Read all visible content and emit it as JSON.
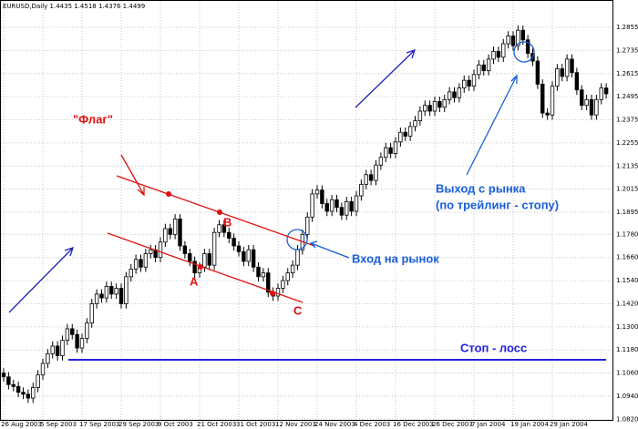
{
  "chart_data": {
    "type": "candlestick",
    "header": "EURUSD,Daily  1.4435 1.4518 1.4376 1.4499",
    "annotations": {
      "flag": "\"Флаг\"",
      "point_a": "A",
      "point_b": "B",
      "point_c": "C",
      "entry": "Вход на рынок",
      "exit_line1": "Выход с рынка",
      "exit_line2": "(по трейлинг - стопу)",
      "stop": "Стоп - лосс"
    },
    "categories": [
      "26 Aug 2003",
      null,
      null,
      null,
      null,
      null,
      null,
      null,
      "5 Sep 2003",
      null,
      null,
      null,
      null,
      null,
      null,
      null,
      "17 Sep 2003",
      null,
      null,
      null,
      null,
      null,
      null,
      null,
      "29 Sep 2003",
      null,
      null,
      null,
      null,
      null,
      null,
      null,
      "9 Oct 2003",
      null,
      null,
      null,
      null,
      null,
      null,
      null,
      "21 Oct 2003",
      null,
      null,
      null,
      null,
      null,
      null,
      null,
      "31 Oct 2003",
      null,
      null,
      null,
      null,
      null,
      null,
      null,
      "12 Nov 2003",
      null,
      null,
      null,
      null,
      null,
      null,
      null,
      "24 Nov 2003",
      null,
      null,
      null,
      null,
      null,
      null,
      null,
      "4 Dec 2003",
      null,
      null,
      null,
      null,
      null,
      null,
      null,
      "16 Dec 2003",
      null,
      null,
      null,
      null,
      null,
      null,
      null,
      "26 Dec 2003",
      null,
      null,
      null,
      null,
      null,
      null,
      null,
      "7 Jan 2004",
      null,
      null,
      null,
      null,
      null,
      null,
      null,
      "19 Jan 2004",
      null,
      null,
      null,
      null,
      null,
      null,
      null,
      "29 Jan 2004",
      null,
      null,
      null,
      null,
      null,
      null,
      null,
      null,
      null,
      null,
      null
    ],
    "open": [
      1.106,
      1.104,
      1.1,
      1.099,
      1.096,
      1.095,
      1.093,
      1.0985,
      1.105,
      1.111,
      1.116,
      1.12,
      1.115,
      1.123,
      1.129,
      1.126,
      1.119,
      1.124,
      1.132,
      1.142,
      1.147,
      1.145,
      1.151,
      1.147,
      1.15,
      1.142,
      1.156,
      1.16,
      1.165,
      1.161,
      1.168,
      1.17,
      1.166,
      1.174,
      1.181,
      1.178,
      1.186,
      1.172,
      1.168,
      1.164,
      1.158,
      1.161,
      1.168,
      1.162,
      1.179,
      1.183,
      1.179,
      1.176,
      1.172,
      1.169,
      1.164,
      1.17,
      1.161,
      1.156,
      1.158,
      1.148,
      1.146,
      1.15,
      1.154,
      1.158,
      1.162,
      1.17,
      1.178,
      1.187,
      1.199,
      1.201,
      1.194,
      1.19,
      1.196,
      1.192,
      1.188,
      1.195,
      1.19,
      1.198,
      1.204,
      1.209,
      1.206,
      1.214,
      1.218,
      1.223,
      1.22,
      1.226,
      1.231,
      1.229,
      1.234,
      1.237,
      1.242,
      1.245,
      1.242,
      1.247,
      1.244,
      1.248,
      1.252,
      1.249,
      1.254,
      1.258,
      1.255,
      1.261,
      1.266,
      1.263,
      1.269,
      1.273,
      1.27,
      1.277,
      1.281,
      1.276,
      1.284,
      1.279,
      1.272,
      1.268,
      1.256,
      1.241,
      1.24,
      1.255,
      1.264,
      1.26,
      1.269,
      1.262,
      1.253,
      1.245,
      1.248,
      1.24,
      1.248,
      1.254
    ],
    "high": [
      1.1085,
      1.1065,
      1.1025,
      1.1015,
      1.0985,
      1.0975,
      1.101,
      1.1075,
      1.1135,
      1.1185,
      1.1225,
      1.1225,
      1.1255,
      1.1315,
      1.1315,
      1.1285,
      1.1265,
      1.1345,
      1.1445,
      1.1495,
      1.1495,
      1.1535,
      1.1535,
      1.1525,
      1.1525,
      1.1585,
      1.1625,
      1.1675,
      1.1675,
      1.1705,
      1.1725,
      1.1725,
      1.1765,
      1.1835,
      1.1835,
      1.1885,
      1.1885,
      1.1745,
      1.1705,
      1.1665,
      1.1635,
      1.1705,
      1.1705,
      1.1815,
      1.1855,
      1.1855,
      1.1815,
      1.1785,
      1.1745,
      1.1715,
      1.1725,
      1.1725,
      1.1635,
      1.1605,
      1.1605,
      1.1505,
      1.1525,
      1.1565,
      1.1605,
      1.1645,
      1.1725,
      1.1805,
      1.1895,
      1.2015,
      1.2035,
      1.2035,
      1.1965,
      1.1985,
      1.1985,
      1.1945,
      1.1975,
      1.1975,
      1.2005,
      1.2065,
      1.2115,
      1.2115,
      1.2165,
      1.2205,
      1.2255,
      1.2255,
      1.2285,
      1.2335,
      1.2335,
      1.2365,
      1.2395,
      1.2445,
      1.2475,
      1.2475,
      1.2495,
      1.2495,
      1.2505,
      1.2545,
      1.2545,
      1.2565,
      1.2605,
      1.2605,
      1.2635,
      1.2685,
      1.2685,
      1.2715,
      1.2755,
      1.2755,
      1.2795,
      1.2835,
      1.2835,
      1.2865,
      1.2865,
      1.2815,
      1.2745,
      1.2705,
      1.2585,
      1.2435,
      1.2575,
      1.2665,
      1.2665,
      1.2715,
      1.2715,
      1.2645,
      1.2555,
      1.2505,
      1.2505,
      1.2505,
      1.2565,
      1.2565
    ],
    "low": [
      1.1015,
      1.0975,
      1.0965,
      1.0935,
      1.0925,
      1.0905,
      1.0905,
      1.096,
      1.1025,
      1.1085,
      1.1135,
      1.1125,
      1.1125,
      1.1205,
      1.1235,
      1.1165,
      1.1165,
      1.1215,
      1.1295,
      1.1395,
      1.1425,
      1.1425,
      1.1445,
      1.1445,
      1.1395,
      1.1395,
      1.1535,
      1.1575,
      1.1585,
      1.1585,
      1.1655,
      1.1635,
      1.1635,
      1.1715,
      1.1755,
      1.1755,
      1.1695,
      1.1655,
      1.1615,
      1.1555,
      1.1555,
      1.1585,
      1.1595,
      1.1595,
      1.1765,
      1.1765,
      1.1735,
      1.1695,
      1.1665,
      1.1615,
      1.1615,
      1.1585,
      1.1535,
      1.1535,
      1.1455,
      1.1435,
      1.1435,
      1.1475,
      1.1515,
      1.1555,
      1.1595,
      1.1675,
      1.1755,
      1.1845,
      1.1965,
      1.1915,
      1.1875,
      1.1875,
      1.1895,
      1.1855,
      1.1855,
      1.1875,
      1.1875,
      1.1955,
      1.2015,
      1.2035,
      1.2035,
      1.2115,
      1.2155,
      1.2175,
      1.2175,
      1.2235,
      1.2265,
      1.2265,
      1.2315,
      1.2345,
      1.2395,
      1.2395,
      1.2395,
      1.2415,
      1.2415,
      1.2455,
      1.2465,
      1.2465,
      1.2515,
      1.2525,
      1.2525,
      1.2585,
      1.2605,
      1.2605,
      1.2665,
      1.2675,
      1.2675,
      1.2745,
      1.2735,
      1.2735,
      1.2765,
      1.2695,
      1.2655,
      1.2535,
      1.2385,
      1.2375,
      1.2375,
      1.2525,
      1.2575,
      1.2575,
      1.2595,
      1.2505,
      1.2425,
      1.2425,
      1.2375,
      1.2375,
      1.2455,
      1.2485
    ],
    "close": [
      1.104,
      1.1,
      1.099,
      1.096,
      1.095,
      1.093,
      1.0985,
      1.105,
      1.111,
      1.116,
      1.12,
      1.115,
      1.123,
      1.129,
      1.126,
      1.119,
      1.124,
      1.132,
      1.142,
      1.147,
      1.145,
      1.151,
      1.147,
      1.15,
      1.142,
      1.156,
      1.16,
      1.165,
      1.161,
      1.168,
      1.17,
      1.166,
      1.174,
      1.181,
      1.178,
      1.186,
      1.172,
      1.168,
      1.164,
      1.158,
      1.161,
      1.168,
      1.162,
      1.179,
      1.183,
      1.179,
      1.176,
      1.172,
      1.169,
      1.164,
      1.17,
      1.161,
      1.156,
      1.158,
      1.148,
      1.146,
      1.15,
      1.154,
      1.158,
      1.162,
      1.17,
      1.178,
      1.187,
      1.199,
      1.201,
      1.194,
      1.19,
      1.196,
      1.192,
      1.188,
      1.195,
      1.19,
      1.198,
      1.204,
      1.209,
      1.206,
      1.214,
      1.218,
      1.223,
      1.22,
      1.226,
      1.231,
      1.229,
      1.234,
      1.237,
      1.242,
      1.245,
      1.242,
      1.247,
      1.244,
      1.248,
      1.252,
      1.249,
      1.254,
      1.258,
      1.255,
      1.261,
      1.266,
      1.263,
      1.269,
      1.273,
      1.27,
      1.277,
      1.281,
      1.276,
      1.284,
      1.279,
      1.272,
      1.268,
      1.256,
      1.241,
      1.24,
      1.255,
      1.264,
      1.26,
      1.269,
      1.262,
      1.253,
      1.245,
      1.248,
      1.24,
      1.248,
      1.254,
      1.251
    ],
    "ylim": [
      1.0812,
      1.2997
    ],
    "yticks": [
      1.2855,
      1.2735,
      1.2615,
      1.2495,
      1.2375,
      1.2255,
      1.2135,
      1.2015,
      1.1895,
      {
        "value": 1.178,
        "label": "1.1780"
      },
      {
        "value": 1.166,
        "label": "1.1660"
      },
      {
        "value": 1.154,
        "label": "1.1540"
      },
      {
        "value": 1.142,
        "label": "1.1420"
      },
      {
        "value": 1.13,
        "label": "1.1300"
      },
      {
        "value": 1.118,
        "label": "1.1180"
      },
      {
        "value": 1.106,
        "label": "1.1060"
      },
      {
        "value": 1.094,
        "label": "1.0940"
      },
      {
        "value": 1.082,
        "label": "1.0820"
      }
    ],
    "grid": true,
    "up_color": "#ffffff",
    "down_color": "#000000"
  }
}
